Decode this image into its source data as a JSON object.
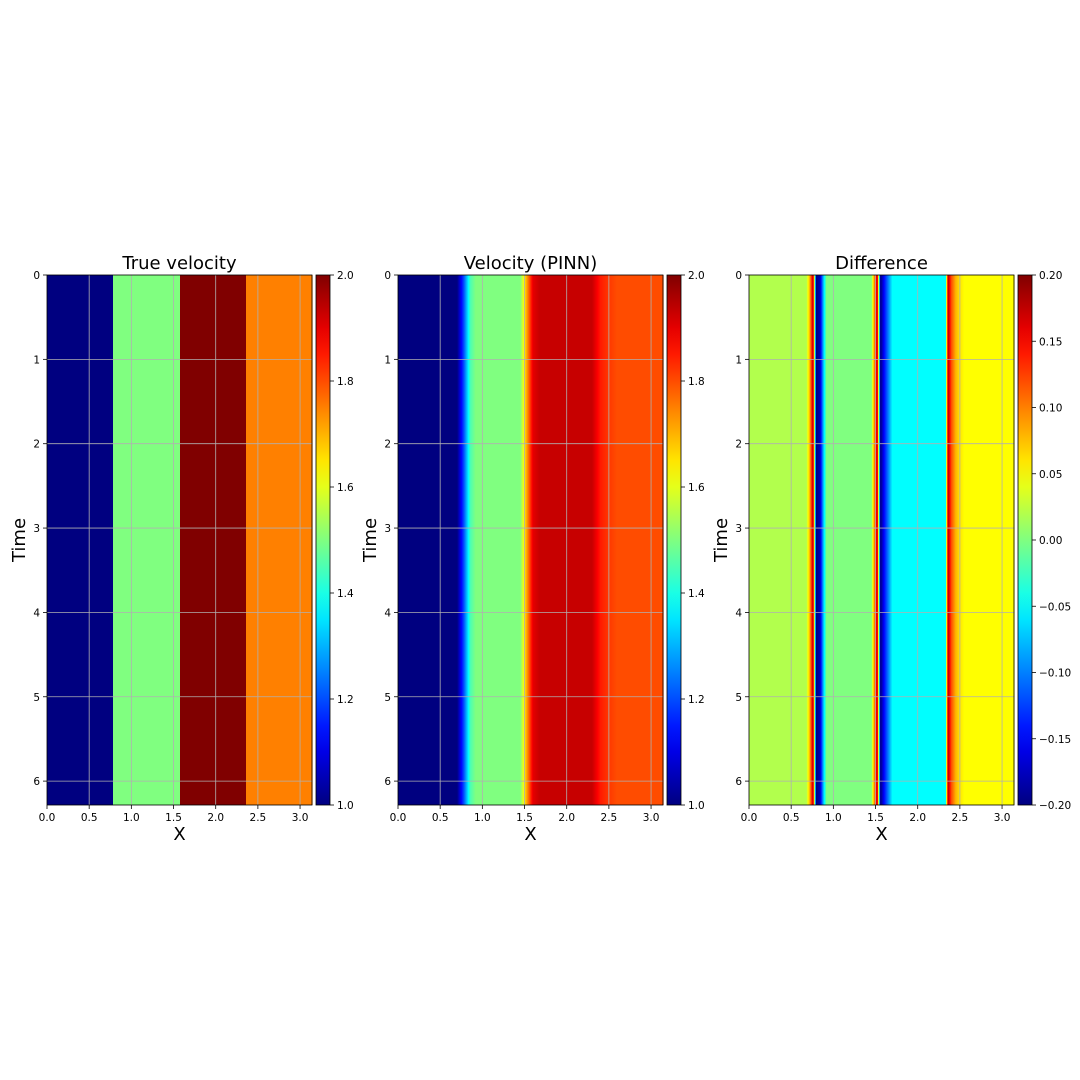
{
  "chart_data": [
    {
      "type": "heatmap",
      "title": "True velocity",
      "xlabel": "X",
      "ylabel": "Time",
      "xlim": [
        0,
        3.14159
      ],
      "ylim": [
        6.28319,
        0
      ],
      "xticks": [
        "0.0",
        "0.5",
        "1.0",
        "1.5",
        "2.0",
        "2.5",
        "3.0"
      ],
      "yticks": [
        "0",
        "1",
        "2",
        "3",
        "4",
        "5",
        "6"
      ],
      "grid": true,
      "colormap": "jet",
      "clim": [
        1.0,
        2.0
      ],
      "colorbar_ticks": [
        "1.0",
        "1.2",
        "1.4",
        "1.6",
        "1.8",
        "2.0"
      ],
      "profile_x": [
        0.0,
        0.785,
        0.785,
        1.571,
        1.571,
        2.356,
        2.356,
        3.142
      ],
      "profile_value": [
        1.0,
        1.0,
        1.5,
        1.5,
        2.0,
        2.0,
        1.75,
        1.75
      ]
    },
    {
      "type": "heatmap",
      "title": "Velocity (PINN)",
      "xlabel": "X",
      "ylabel": "Time",
      "xlim": [
        0,
        3.14159
      ],
      "ylim": [
        6.28319,
        0
      ],
      "xticks": [
        "0.0",
        "0.5",
        "1.0",
        "1.5",
        "2.0",
        "2.5",
        "3.0"
      ],
      "yticks": [
        "0",
        "1",
        "2",
        "3",
        "4",
        "5",
        "6"
      ],
      "grid": true,
      "colormap": "jet",
      "clim": [
        1.0,
        2.0
      ],
      "colorbar_ticks": [
        "1.0",
        "1.2",
        "1.4",
        "1.6",
        "1.8",
        "2.0"
      ],
      "profile_x": [
        0.0,
        0.7,
        0.78,
        0.86,
        0.92,
        1.45,
        1.52,
        1.6,
        1.68,
        2.3,
        2.4,
        2.5,
        2.6,
        3.142
      ],
      "profile_value": [
        1.0,
        1.0,
        1.2,
        1.45,
        1.5,
        1.5,
        1.7,
        1.9,
        1.93,
        1.93,
        1.85,
        1.82,
        1.8,
        1.8
      ]
    },
    {
      "type": "heatmap",
      "title": "Difference",
      "xlabel": "X",
      "ylabel": "Time",
      "xlim": [
        0,
        3.14159
      ],
      "ylim": [
        6.28319,
        0
      ],
      "xticks": [
        "0.0",
        "0.5",
        "1.0",
        "1.5",
        "2.0",
        "2.5",
        "3.0"
      ],
      "yticks": [
        "0",
        "1",
        "2",
        "3",
        "4",
        "5",
        "6"
      ],
      "grid": true,
      "colormap": "jet",
      "clim": [
        -0.2,
        0.2
      ],
      "colorbar_ticks": [
        "−0.20",
        "−0.15",
        "−0.10",
        "−0.05",
        "0.00",
        "0.05",
        "0.10",
        "0.15",
        "0.20"
      ],
      "profile_x": [
        0.0,
        0.68,
        0.72,
        0.76,
        0.8,
        0.84,
        0.88,
        0.92,
        1.45,
        1.48,
        1.52,
        1.56,
        1.6,
        1.65,
        1.7,
        2.33,
        2.36,
        2.4,
        2.45,
        2.5,
        2.55,
        2.6,
        2.65,
        3.142
      ],
      "profile_value": [
        0.02,
        0.02,
        0.08,
        0.18,
        -0.2,
        -0.18,
        -0.08,
        0.0,
        0.0,
        0.08,
        0.18,
        -0.2,
        -0.15,
        -0.1,
        -0.05,
        -0.05,
        0.18,
        0.12,
        0.08,
        0.06,
        0.05,
        0.05,
        0.05,
        0.05
      ]
    }
  ]
}
